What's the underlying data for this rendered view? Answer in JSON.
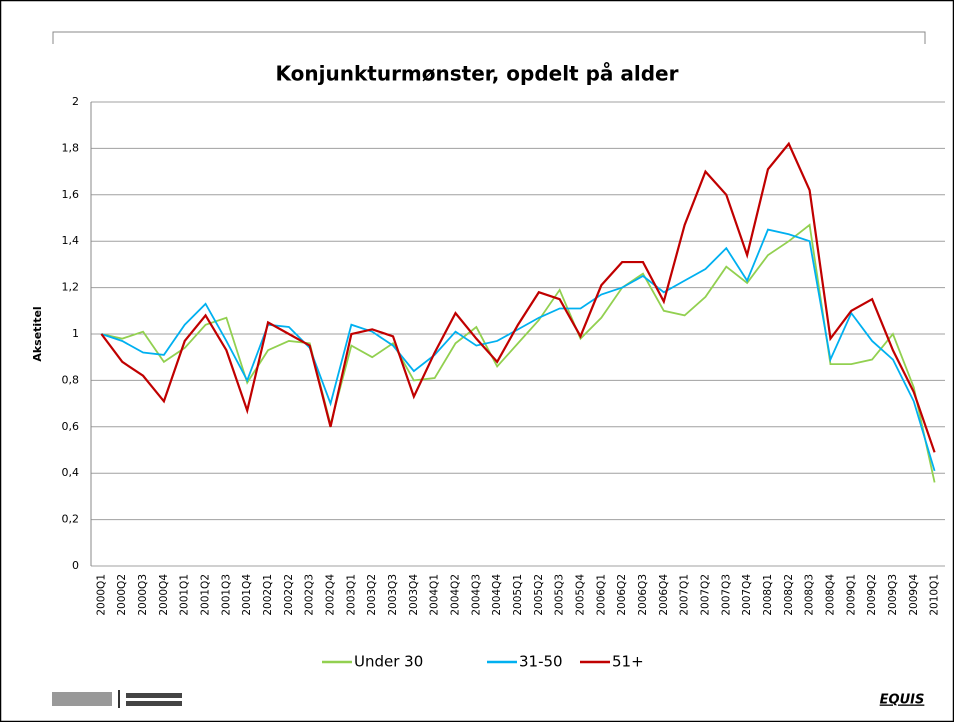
{
  "chart_data": {
    "type": "line",
    "title": "Konjunkturmønster, opdelt på alder",
    "y_label": "Aksetitel",
    "categories": [
      "2000Q1",
      "2000Q2",
      "2000Q3",
      "2000Q4",
      "2001Q1",
      "2001Q2",
      "2001Q3",
      "2001Q4",
      "2002Q1",
      "2002Q2",
      "2002Q3",
      "2002Q4",
      "2003Q1",
      "2003Q2",
      "2003Q3",
      "2003Q4",
      "2004Q1",
      "2004Q2",
      "2004Q3",
      "2004Q4",
      "2005Q1",
      "2005Q2",
      "2005Q3",
      "2005Q4",
      "2006Q1",
      "2006Q2",
      "2006Q3",
      "2006Q4",
      "2007Q1",
      "2007Q2",
      "2007Q3",
      "2007Q4",
      "2008Q1",
      "2008Q2",
      "2008Q3",
      "2008Q4",
      "2009Q1",
      "2009Q2",
      "2009Q3",
      "2009Q4",
      "2010Q1"
    ],
    "series": [
      {
        "name": "Under 30",
        "color": "#92d050",
        "values": [
          1.0,
          0.98,
          1.01,
          0.88,
          0.94,
          1.04,
          1.07,
          0.79,
          0.93,
          0.97,
          0.96,
          0.61,
          0.95,
          0.9,
          0.96,
          0.8,
          0.81,
          0.96,
          1.03,
          0.86,
          0.96,
          1.06,
          1.19,
          0.98,
          1.07,
          1.2,
          1.26,
          1.1,
          1.08,
          1.16,
          1.29,
          1.22,
          1.34,
          1.4,
          1.47,
          0.87,
          0.87,
          0.89,
          1.0,
          0.77,
          0.36
        ]
      },
      {
        "name": "31-50",
        "color": "#00b0f0",
        "values": [
          1.0,
          0.97,
          0.92,
          0.91,
          1.04,
          1.13,
          0.97,
          0.8,
          1.04,
          1.03,
          0.94,
          0.7,
          1.04,
          1.01,
          0.95,
          0.84,
          0.91,
          1.01,
          0.95,
          0.97,
          1.02,
          1.07,
          1.11,
          1.11,
          1.17,
          1.2,
          1.25,
          1.18,
          1.23,
          1.28,
          1.37,
          1.23,
          1.45,
          1.43,
          1.4,
          0.89,
          1.09,
          0.97,
          0.89,
          0.71,
          0.41
        ]
      },
      {
        "name": "51+",
        "color": "#c00000",
        "values": [
          1.0,
          0.88,
          0.82,
          0.71,
          0.97,
          1.08,
          0.93,
          0.67,
          1.05,
          1.0,
          0.95,
          0.6,
          1.0,
          1.02,
          0.99,
          0.73,
          0.92,
          1.09,
          0.98,
          0.88,
          1.04,
          1.18,
          1.15,
          0.99,
          1.21,
          1.31,
          1.31,
          1.14,
          1.47,
          1.7,
          1.6,
          1.34,
          1.71,
          1.82,
          1.62,
          0.98,
          1.1,
          1.15,
          0.93,
          0.75,
          0.49
        ]
      }
    ],
    "ylim": [
      0,
      2
    ],
    "yticks": [
      0,
      {
        "value": 0.2,
        "label": "0,2"
      },
      {
        "value": 0.4,
        "label": "0,4"
      },
      {
        "value": 0.6,
        "label": "0,6"
      },
      {
        "value": 0.8,
        "label": "0,8"
      },
      1,
      {
        "value": 1.2,
        "label": "1,2"
      },
      {
        "value": 1.4,
        "label": "1,4"
      },
      {
        "value": 1.6,
        "label": "1,6"
      },
      {
        "value": 1.8,
        "label": "1,8"
      },
      2
    ],
    "grid": true,
    "legend": "bottom"
  },
  "footer": {
    "logo_right": "EQUIS"
  }
}
